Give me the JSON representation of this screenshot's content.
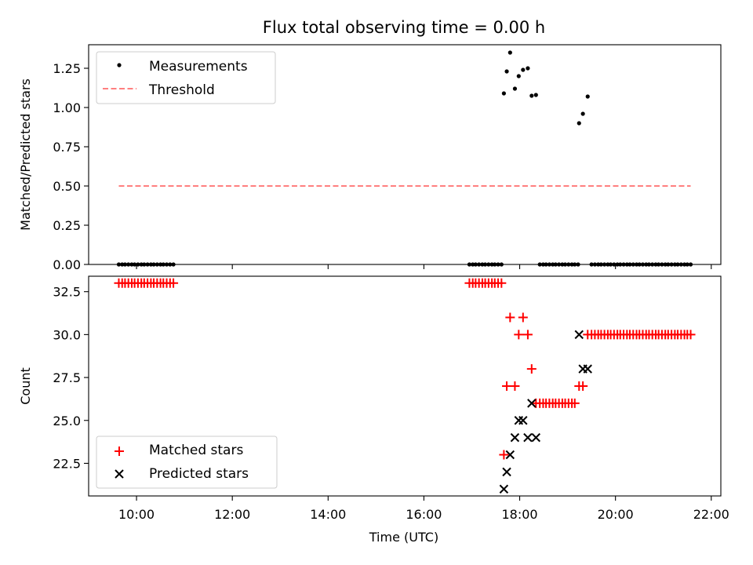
{
  "chart_data": [
    {
      "type": "scatter",
      "title": "Flux total observing time = 0.00 h",
      "xlabel": "",
      "ylabel": "Matched/Predicted stars",
      "xlim": [
        9.0,
        22.2
      ],
      "ylim": [
        0.0,
        1.4
      ],
      "yticks": [
        "0.00",
        "0.25",
        "0.50",
        "0.75",
        "1.00",
        "1.25"
      ],
      "yticks_values": [
        0.0,
        0.25,
        0.5,
        0.75,
        1.0,
        1.25
      ],
      "legend": {
        "placement": "top-left",
        "entries": [
          "Measurements",
          "Threshold"
        ]
      },
      "grid": false,
      "series": [
        {
          "name": "Measurements",
          "marker": "dot",
          "color": "#000000",
          "points": [
            [
              9.63,
              0
            ],
            [
              9.7,
              0
            ],
            [
              9.76,
              0
            ],
            [
              9.83,
              0
            ],
            [
              9.9,
              0
            ],
            [
              9.96,
              0
            ],
            [
              10.03,
              0
            ],
            [
              10.1,
              0
            ],
            [
              10.16,
              0
            ],
            [
              10.23,
              0
            ],
            [
              10.3,
              0
            ],
            [
              10.36,
              0
            ],
            [
              10.43,
              0
            ],
            [
              10.5,
              0
            ],
            [
              10.56,
              0
            ],
            [
              10.63,
              0
            ],
            [
              10.7,
              0
            ],
            [
              10.77,
              0
            ],
            [
              16.95,
              0
            ],
            [
              17.02,
              0
            ],
            [
              17.08,
              0
            ],
            [
              17.15,
              0
            ],
            [
              17.22,
              0
            ],
            [
              17.28,
              0
            ],
            [
              17.35,
              0
            ],
            [
              17.42,
              0
            ],
            [
              17.48,
              0
            ],
            [
              17.55,
              0
            ],
            [
              17.62,
              0
            ],
            [
              17.67,
              1.09
            ],
            [
              17.73,
              1.23
            ],
            [
              17.8,
              1.35
            ],
            [
              17.9,
              1.12
            ],
            [
              17.98,
              1.2
            ],
            [
              18.07,
              1.24
            ],
            [
              18.17,
              1.25
            ],
            [
              18.25,
              1.075
            ],
            [
              18.34,
              1.08
            ],
            [
              18.42,
              0
            ],
            [
              18.49,
              0
            ],
            [
              18.55,
              0
            ],
            [
              18.62,
              0
            ],
            [
              18.69,
              0
            ],
            [
              18.75,
              0
            ],
            [
              18.82,
              0
            ],
            [
              18.89,
              0
            ],
            [
              18.95,
              0
            ],
            [
              19.02,
              0
            ],
            [
              19.09,
              0
            ],
            [
              19.15,
              0
            ],
            [
              19.22,
              0
            ],
            [
              19.24,
              0.9
            ],
            [
              19.32,
              0.96
            ],
            [
              19.42,
              1.07
            ],
            [
              19.5,
              0
            ],
            [
              19.57,
              0
            ],
            [
              19.64,
              0
            ],
            [
              19.7,
              0
            ],
            [
              19.77,
              0
            ],
            [
              19.84,
              0
            ],
            [
              19.9,
              0
            ],
            [
              19.97,
              0
            ],
            [
              20.04,
              0
            ],
            [
              20.1,
              0
            ],
            [
              20.17,
              0
            ],
            [
              20.24,
              0
            ],
            [
              20.3,
              0
            ],
            [
              20.37,
              0
            ],
            [
              20.44,
              0
            ],
            [
              20.5,
              0
            ],
            [
              20.57,
              0
            ],
            [
              20.64,
              0
            ],
            [
              20.7,
              0
            ],
            [
              20.77,
              0
            ],
            [
              20.84,
              0
            ],
            [
              20.9,
              0
            ],
            [
              20.97,
              0
            ],
            [
              21.04,
              0
            ],
            [
              21.1,
              0
            ],
            [
              21.17,
              0
            ],
            [
              21.24,
              0
            ],
            [
              21.3,
              0
            ],
            [
              21.37,
              0
            ],
            [
              21.44,
              0
            ],
            [
              21.5,
              0
            ],
            [
              21.57,
              0
            ]
          ]
        },
        {
          "name": "Threshold",
          "style": "dashed",
          "color": "#ff7f7f",
          "points": [
            [
              9.63,
              0.5
            ],
            [
              21.57,
              0.5
            ]
          ]
        }
      ]
    },
    {
      "type": "scatter",
      "title": "",
      "xlabel": "Time (UTC)",
      "ylabel": "Count",
      "xlim": [
        9.0,
        22.2
      ],
      "ylim": [
        20.6,
        33.4
      ],
      "xticks": [
        "10:00",
        "12:00",
        "14:00",
        "16:00",
        "18:00",
        "20:00",
        "22:00"
      ],
      "xticks_values": [
        10,
        12,
        14,
        16,
        18,
        20,
        22
      ],
      "yticks": [
        "22.5",
        "25.0",
        "27.5",
        "30.0",
        "32.5"
      ],
      "yticks_values": [
        22.5,
        25.0,
        27.5,
        30.0,
        32.5
      ],
      "legend": {
        "placement": "bottom-left",
        "entries": [
          "Matched stars",
          "Predicted stars"
        ]
      },
      "grid": false,
      "series": [
        {
          "name": "Matched stars",
          "marker": "plus",
          "color": "#ff0000",
          "points": [
            [
              9.63,
              33
            ],
            [
              9.7,
              33
            ],
            [
              9.76,
              33
            ],
            [
              9.83,
              33
            ],
            [
              9.9,
              33
            ],
            [
              9.96,
              33
            ],
            [
              10.03,
              33
            ],
            [
              10.1,
              33
            ],
            [
              10.16,
              33
            ],
            [
              10.23,
              33
            ],
            [
              10.3,
              33
            ],
            [
              10.36,
              33
            ],
            [
              10.43,
              33
            ],
            [
              10.5,
              33
            ],
            [
              10.56,
              33
            ],
            [
              10.63,
              33
            ],
            [
              10.7,
              33
            ],
            [
              10.77,
              33
            ],
            [
              16.95,
              33
            ],
            [
              17.02,
              33
            ],
            [
              17.08,
              33
            ],
            [
              17.15,
              33
            ],
            [
              17.22,
              33
            ],
            [
              17.28,
              33
            ],
            [
              17.35,
              33
            ],
            [
              17.42,
              33
            ],
            [
              17.48,
              33
            ],
            [
              17.55,
              33
            ],
            [
              17.62,
              33
            ],
            [
              17.67,
              23
            ],
            [
              17.73,
              27
            ],
            [
              17.8,
              31
            ],
            [
              17.9,
              27
            ],
            [
              17.98,
              30
            ],
            [
              18.07,
              31
            ],
            [
              18.17,
              30
            ],
            [
              18.25,
              28
            ],
            [
              18.34,
              26
            ],
            [
              18.42,
              26
            ],
            [
              18.49,
              26
            ],
            [
              18.55,
              26
            ],
            [
              18.62,
              26
            ],
            [
              18.69,
              26
            ],
            [
              18.75,
              26
            ],
            [
              18.82,
              26
            ],
            [
              18.89,
              26
            ],
            [
              18.95,
              26
            ],
            [
              19.02,
              26
            ],
            [
              19.09,
              26
            ],
            [
              19.15,
              26
            ],
            [
              19.24,
              27
            ],
            [
              19.32,
              27
            ],
            [
              19.42,
              30
            ],
            [
              19.5,
              30
            ],
            [
              19.57,
              30
            ],
            [
              19.64,
              30
            ],
            [
              19.7,
              30
            ],
            [
              19.77,
              30
            ],
            [
              19.84,
              30
            ],
            [
              19.9,
              30
            ],
            [
              19.97,
              30
            ],
            [
              20.04,
              30
            ],
            [
              20.1,
              30
            ],
            [
              20.17,
              30
            ],
            [
              20.24,
              30
            ],
            [
              20.3,
              30
            ],
            [
              20.37,
              30
            ],
            [
              20.44,
              30
            ],
            [
              20.5,
              30
            ],
            [
              20.57,
              30
            ],
            [
              20.64,
              30
            ],
            [
              20.7,
              30
            ],
            [
              20.77,
              30
            ],
            [
              20.84,
              30
            ],
            [
              20.9,
              30
            ],
            [
              20.97,
              30
            ],
            [
              21.04,
              30
            ],
            [
              21.1,
              30
            ],
            [
              21.17,
              30
            ],
            [
              21.24,
              30
            ],
            [
              21.3,
              30
            ],
            [
              21.37,
              30
            ],
            [
              21.44,
              30
            ],
            [
              21.5,
              30
            ],
            [
              21.57,
              30
            ]
          ]
        },
        {
          "name": "Predicted stars",
          "marker": "x",
          "color": "#000000",
          "points": [
            [
              17.67,
              21
            ],
            [
              17.73,
              22
            ],
            [
              17.8,
              23
            ],
            [
              17.9,
              24
            ],
            [
              17.98,
              25
            ],
            [
              18.07,
              25
            ],
            [
              18.17,
              24
            ],
            [
              18.25,
              26
            ],
            [
              18.34,
              24
            ],
            [
              19.24,
              30
            ],
            [
              19.32,
              28
            ],
            [
              19.42,
              28
            ]
          ]
        }
      ]
    }
  ]
}
